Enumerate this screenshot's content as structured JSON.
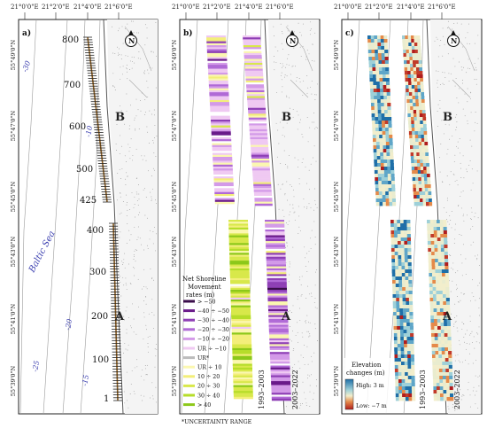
{
  "longitude_labels": [
    "21°0'0\"E",
    "21°2'0\"E",
    "21°4'0\"E",
    "21°6'0\"E"
  ],
  "latitude_labels": [
    "55°49'0\"N",
    "55°47'0\"N",
    "55°45'0\"N",
    "55°43'0\"N",
    "55°41'0\"N",
    "55°39'0\"N"
  ],
  "panels": [
    {
      "label": "a)",
      "zone_b": "B",
      "zone_a": "A"
    },
    {
      "label": "b)",
      "zone_b": "B",
      "zone_a": "A"
    },
    {
      "label": "c)",
      "zone_b": "B",
      "zone_a": "A"
    }
  ],
  "north_arrow": {
    "letter": "N",
    "icon": "north-arrow-icon"
  },
  "panel_a": {
    "sea_label": "Baltic Sea",
    "depth_labels": [
      "-30",
      "-10",
      "-20",
      "-25",
      "-15"
    ],
    "distance_marks": [
      "800",
      "700",
      "600",
      "500",
      "425",
      "400",
      "300",
      "200",
      "100",
      "1"
    ]
  },
  "periods": [
    "1993–2003",
    "2003–2022"
  ],
  "legend_b": {
    "title_line1": "Net Shoreline",
    "title_line2": "Movement",
    "title_line3": "rates (m)",
    "items": [
      {
        "label": "> −50",
        "color": "#3a0e4a"
      },
      {
        "label": "−40 ÷ −50",
        "color": "#6a1b8a"
      },
      {
        "label": "−30 ÷ −40",
        "color": "#8e3fb5"
      },
      {
        "label": "−20 ÷ −30",
        "color": "#b06ad6"
      },
      {
        "label": "−10 ÷ −20",
        "color": "#d39ae8"
      },
      {
        "label": "UR ÷ −10",
        "color": "#efc9f2"
      },
      {
        "label": "UR*",
        "color": "#ffffff"
      },
      {
        "label": "UR ÷ 10",
        "color": "#fbf7b0"
      },
      {
        "label": "10 ÷ 20",
        "color": "#f3ee7a"
      },
      {
        "label": "20 ÷ 30",
        "color": "#d8e84a"
      },
      {
        "label": "30 ÷ 40",
        "color": "#b6dd2a"
      },
      {
        "label": "> 40",
        "color": "#8cc81a"
      }
    ],
    "footnote": "*UNCERTAINTY RANGE"
  },
  "legend_c": {
    "title_line1": "Elevation",
    "title_line2": "changes (m)",
    "high_label": "High: 3 m",
    "low_label": "Low: −7 m",
    "high_color": "#1f6fa8",
    "low_color": "#b01d1d"
  }
}
